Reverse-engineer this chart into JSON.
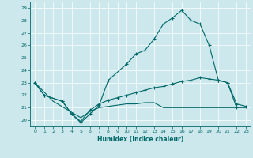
{
  "xlabel": "Humidex (Indice chaleur)",
  "bg_color": "#cce8ec",
  "line_color": "#006868",
  "grid_color": "#ffffff",
  "xlim": [
    -0.5,
    23.5
  ],
  "ylim": [
    19.5,
    29.5
  ],
  "xticks": [
    0,
    1,
    2,
    3,
    4,
    5,
    6,
    7,
    8,
    9,
    10,
    11,
    12,
    13,
    14,
    15,
    16,
    17,
    18,
    19,
    20,
    21,
    22,
    23
  ],
  "yticks": [
    20,
    21,
    22,
    23,
    24,
    25,
    26,
    27,
    28,
    29
  ],
  "line1_x": [
    0,
    1,
    3,
    4,
    5,
    6,
    7,
    8,
    10,
    11,
    12,
    13,
    14,
    15,
    16,
    17,
    18,
    19,
    20,
    21,
    22
  ],
  "line1_y": [
    23,
    22,
    21.5,
    20.5,
    19.8,
    20.5,
    21.2,
    23.2,
    24.5,
    25.3,
    25.6,
    26.5,
    27.7,
    28.2,
    28.8,
    28.0,
    27.7,
    26.0,
    23.2,
    23.0,
    21.0
  ],
  "line2_x": [
    0,
    1,
    3,
    4,
    5,
    6,
    7,
    8,
    9,
    10,
    11,
    12,
    13,
    14,
    15,
    16,
    17,
    18,
    19,
    20,
    21,
    22,
    23
  ],
  "line2_y": [
    23,
    22,
    21.5,
    20.5,
    19.9,
    20.8,
    21.3,
    21.6,
    21.8,
    22.0,
    22.2,
    22.4,
    22.6,
    22.7,
    22.9,
    23.1,
    23.2,
    23.4,
    23.3,
    23.2,
    23.0,
    21.3,
    21.1
  ],
  "line3_x": [
    0,
    2,
    5,
    6,
    7,
    8,
    9,
    10,
    11,
    12,
    13,
    14,
    15,
    16,
    17,
    18,
    19,
    20,
    21,
    22,
    23
  ],
  "line3_y": [
    23,
    21.5,
    20.2,
    20.7,
    21.0,
    21.1,
    21.2,
    21.3,
    21.3,
    21.4,
    21.4,
    21.0,
    21.0,
    21.0,
    21.0,
    21.0,
    21.0,
    21.0,
    21.0,
    21.0,
    21.0
  ]
}
